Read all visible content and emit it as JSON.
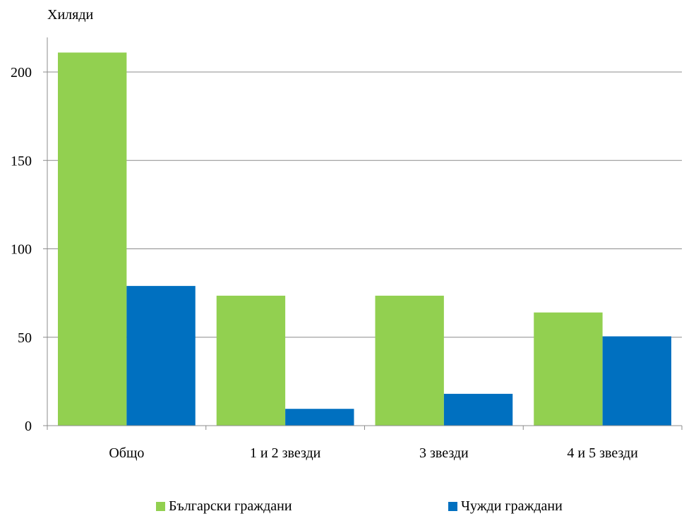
{
  "chart_data": {
    "type": "bar",
    "ylabel": "Хиляди",
    "categories": [
      "Общо",
      "1 и 2 звезди",
      "3 звезди",
      "4 и 5 звезди"
    ],
    "series": [
      {
        "name": "Български граждани",
        "color": "#92d050",
        "values": [
          211,
          73.5,
          73.5,
          64
        ]
      },
      {
        "name": "Чужди граждани",
        "color": "#0070c0",
        "values": [
          79,
          9.5,
          18,
          50.5
        ]
      }
    ],
    "ylim": [
      0,
      200
    ],
    "yticks": [
      0,
      50,
      100,
      150,
      200
    ],
    "grid": true,
    "legend_position": "bottom"
  }
}
